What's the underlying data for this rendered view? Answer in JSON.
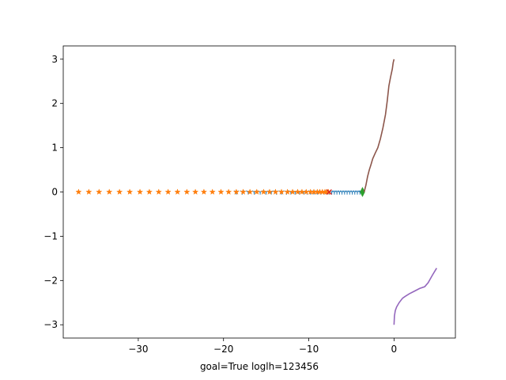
{
  "chart_data": {
    "type": "line",
    "xlabel": "goal=True loglh=123456",
    "ylabel": "",
    "xlim": [
      -38.8,
      7.2
    ],
    "ylim": [
      -3.3,
      3.3
    ],
    "xticks": [
      {
        "value": -30,
        "label": "−30"
      },
      {
        "value": -20,
        "label": "−20"
      },
      {
        "value": -10,
        "label": "−10"
      },
      {
        "value": 0,
        "label": "0"
      }
    ],
    "yticks": [
      {
        "value": -3,
        "label": "−3"
      },
      {
        "value": -2,
        "label": "−2"
      },
      {
        "value": -1,
        "label": "−1"
      },
      {
        "value": 0,
        "label": "0"
      },
      {
        "value": 1,
        "label": "1"
      },
      {
        "value": 2,
        "label": "2"
      },
      {
        "value": 3,
        "label": "3"
      }
    ],
    "grid": false,
    "series": [
      {
        "color": "#1f77b4",
        "marker": "tri_down",
        "line": false,
        "x": [
          -18.5,
          -17.8,
          -17.1,
          -16.4,
          -15.7,
          -15.0,
          -14.4,
          -13.8,
          -13.2,
          -12.6,
          -12.1,
          -11.6,
          -11.1,
          -10.6,
          -10.2,
          -9.8,
          -9.4,
          -9.0,
          -8.6,
          -8.2,
          -7.9,
          -7.6,
          -7.3,
          -7.0,
          -6.7,
          -6.4,
          -6.1,
          -5.8,
          -5.5,
          -5.2,
          -4.9,
          -4.6,
          -4.3,
          -4.0,
          -3.8
        ],
        "y": [
          0,
          0,
          0,
          0,
          0,
          0,
          0,
          0,
          0,
          0,
          0,
          0,
          0,
          0,
          0,
          0,
          0,
          0,
          0,
          0,
          0,
          0,
          0,
          0,
          0,
          0,
          0,
          0,
          0,
          0,
          0,
          0,
          0,
          0,
          0
        ]
      },
      {
        "color": "#ff7f0e",
        "marker": "star",
        "line": false,
        "x": [
          -37.0,
          -35.8,
          -34.6,
          -33.4,
          -32.2,
          -31.0,
          -29.8,
          -28.7,
          -27.6,
          -26.5,
          -25.4,
          -24.3,
          -23.3,
          -22.3,
          -21.3,
          -20.3,
          -19.4,
          -18.5,
          -17.7,
          -16.9,
          -16.1,
          -15.3,
          -14.6,
          -13.9,
          -13.2,
          -12.5,
          -11.9,
          -11.3,
          -10.8,
          -10.3,
          -9.8,
          -9.4,
          -9.0,
          -8.7,
          -8.4,
          -8.1,
          -7.9,
          -7.7
        ],
        "y": [
          0,
          0,
          0,
          0,
          0,
          0,
          0,
          0,
          0,
          0,
          0,
          0,
          0,
          0,
          0,
          0,
          0,
          0,
          0,
          0,
          0,
          0,
          0,
          0,
          0,
          0,
          0,
          0,
          0,
          0,
          0,
          0,
          0,
          0,
          0,
          0,
          0,
          0
        ]
      },
      {
        "color": "#2ca02c",
        "marker": "thin_diamond",
        "line": false,
        "x": [
          -3.7
        ],
        "y": [
          0
        ]
      },
      {
        "color": "#d62728",
        "marker": "x",
        "line": false,
        "x": [
          -7.6
        ],
        "y": [
          0
        ]
      },
      {
        "color": "#9467bd",
        "marker": "none",
        "line": true,
        "x": [
          0.0,
          0.05,
          0.15,
          0.3,
          0.6,
          1.0,
          1.3,
          1.8,
          2.4,
          3.0,
          3.6,
          4.0,
          4.5,
          5.0
        ],
        "y": [
          -3.0,
          -2.8,
          -2.68,
          -2.6,
          -2.5,
          -2.4,
          -2.36,
          -2.3,
          -2.24,
          -2.18,
          -2.14,
          -2.05,
          -1.88,
          -1.72
        ]
      },
      {
        "color": "#8c564b",
        "marker": "none",
        "line": true,
        "x": [
          -3.5,
          -3.3,
          -3.1,
          -2.9,
          -2.7,
          -2.5,
          -2.2,
          -1.9,
          -1.6,
          -1.3,
          -1.0,
          -0.8,
          -0.6,
          -0.4,
          -0.2,
          -0.1,
          0.0
        ],
        "y": [
          0.0,
          0.15,
          0.35,
          0.5,
          0.62,
          0.75,
          0.88,
          1.0,
          1.2,
          1.45,
          1.75,
          2.05,
          2.4,
          2.6,
          2.78,
          2.92,
          3.0
        ]
      }
    ]
  }
}
